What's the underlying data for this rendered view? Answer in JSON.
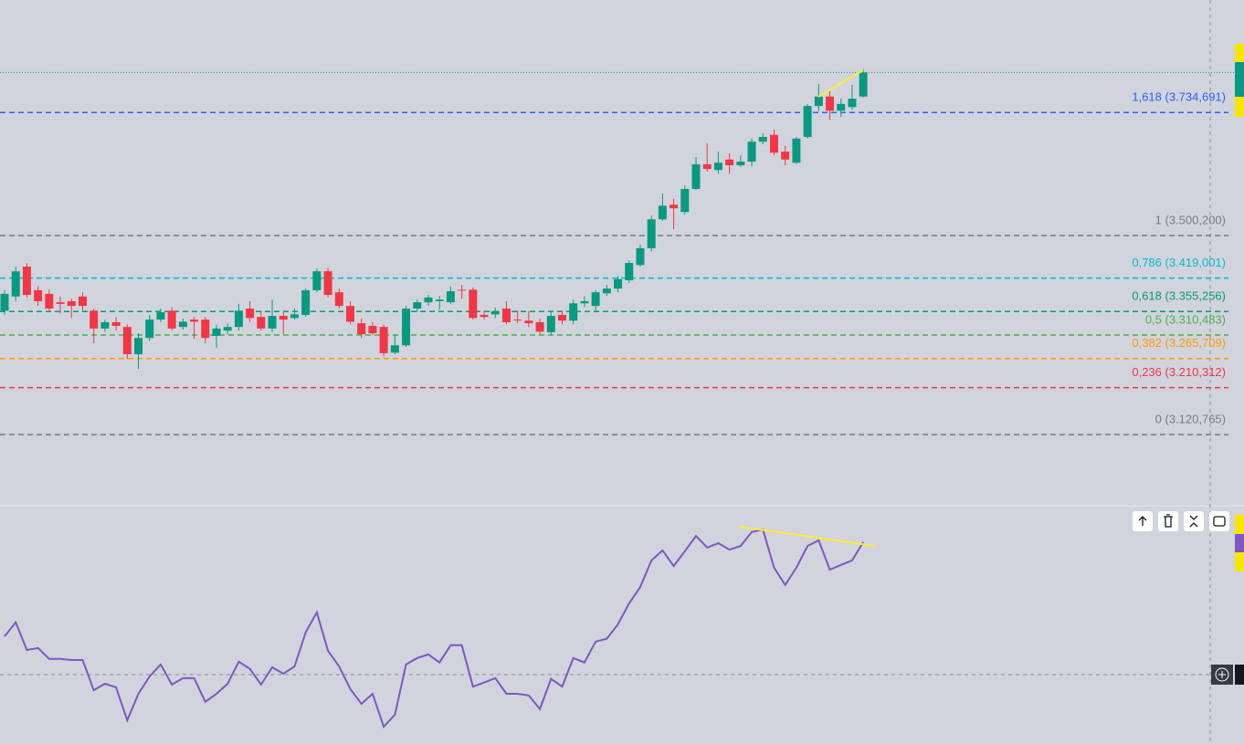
{
  "chart_data": [
    {
      "type": "candlestick",
      "ylim": [
        2987,
        3949
      ],
      "up_color": "#089981",
      "down_color": "#f23645",
      "open": [
        3357,
        3384,
        3441,
        3396,
        3389,
        3373,
        3375,
        3384,
        3357,
        3323,
        3335,
        3326,
        3274,
        3305,
        3340,
        3357,
        3326,
        3340,
        3340,
        3309,
        3319,
        3326,
        3361,
        3345,
        3323,
        3347,
        3343,
        3349,
        3396,
        3432,
        3392,
        3366,
        3333,
        3328,
        3326,
        3277,
        3291,
        3361,
        3373,
        3375,
        3373,
        3397,
        3397,
        3349,
        3350,
        3361,
        3340,
        3338,
        3335,
        3316,
        3349,
        3338,
        3371,
        3366,
        3390,
        3399,
        3415,
        3444,
        3476,
        3531,
        3559,
        3545,
        3589,
        3636,
        3625,
        3645,
        3634,
        3641,
        3679,
        3692,
        3660,
        3639,
        3688,
        3747,
        3765,
        3738,
        3745,
        3765
      ],
      "high": [
        3396,
        3441,
        3448,
        3404,
        3397,
        3384,
        3380,
        3392,
        3361,
        3340,
        3345,
        3331,
        3314,
        3349,
        3361,
        3363,
        3342,
        3345,
        3345,
        3330,
        3333,
        3370,
        3375,
        3357,
        3378,
        3354,
        3361,
        3399,
        3437,
        3439,
        3399,
        3375,
        3342,
        3336,
        3331,
        3310,
        3366,
        3378,
        3387,
        3385,
        3403,
        3406,
        3401,
        3357,
        3363,
        3375,
        3357,
        3356,
        3342,
        3354,
        3357,
        3378,
        3384,
        3396,
        3406,
        3423,
        3453,
        3483,
        3538,
        3580,
        3570,
        3596,
        3650,
        3676,
        3660,
        3657,
        3653,
        3685,
        3695,
        3702,
        3671,
        3688,
        3751,
        3789,
        3775,
        3761,
        3787,
        3817
      ],
      "low": [
        3349,
        3375,
        3382,
        3366,
        3354,
        3352,
        3343,
        3357,
        3295,
        3317,
        3319,
        3265,
        3246,
        3300,
        3335,
        3319,
        3321,
        3303,
        3295,
        3286,
        3312,
        3319,
        3336,
        3319,
        3316,
        3312,
        3340,
        3345,
        3392,
        3382,
        3361,
        3331,
        3305,
        3310,
        3270,
        3274,
        3288,
        3354,
        3366,
        3359,
        3370,
        3380,
        3340,
        3340,
        3343,
        3331,
        3333,
        3326,
        3312,
        3310,
        3331,
        3331,
        3364,
        3354,
        3385,
        3392,
        3410,
        3441,
        3470,
        3528,
        3512,
        3540,
        3587,
        3622,
        3618,
        3618,
        3631,
        3632,
        3674,
        3653,
        3634,
        3636,
        3685,
        3737,
        3721,
        3726,
        3740,
        3763
      ],
      "close": [
        3389,
        3432,
        3387,
        3375,
        3361,
        3370,
        3366,
        3366,
        3323,
        3335,
        3328,
        3274,
        3305,
        3340,
        3354,
        3323,
        3336,
        3336,
        3305,
        3323,
        3326,
        3357,
        3343,
        3323,
        3347,
        3340,
        3350,
        3396,
        3432,
        3387,
        3366,
        3336,
        3312,
        3314,
        3276,
        3291,
        3361,
        3373,
        3382,
        3378,
        3394,
        3396,
        3343,
        3345,
        3356,
        3335,
        3339,
        3333,
        3317,
        3347,
        3338,
        3371,
        3375,
        3392,
        3399,
        3417,
        3448,
        3476,
        3531,
        3557,
        3552,
        3589,
        3636,
        3627,
        3639,
        3634,
        3641,
        3679,
        3688,
        3658,
        3645,
        3685,
        3747,
        3765,
        3738,
        3751,
        3761,
        3811
      ],
      "levels": [
        {
          "value": 3734.691,
          "label": "1,618 (3.734,691)",
          "color": "#2962ff"
        },
        {
          "value": 3500.2,
          "label": "1 (3.500,200)",
          "color": "#787b86"
        },
        {
          "value": 3419.001,
          "label": "0,786 (3.419,001)",
          "color": "#00bcd4"
        },
        {
          "value": 3355.256,
          "label": "0,618 (3.355,256)",
          "color": "#089981"
        },
        {
          "value": 3310.483,
          "label": "0,5 (3.310,483)",
          "color": "#4caf50"
        },
        {
          "value": 3265.709,
          "label": "0,382 (3.265,709)",
          "color": "#ff9800"
        },
        {
          "value": 3210.312,
          "label": "0,236 (3.210,312)",
          "color": "#f23645"
        },
        {
          "value": 3120.765,
          "label": "0 (3.120,765)",
          "color": "#787b86"
        }
      ]
    },
    {
      "type": "line",
      "ylim": [
        32.7,
        91.8
      ],
      "series": [
        {
          "color": "#7e57c2",
          "values": [
            59.5,
            63.0,
            56.1,
            56.6,
            53.9,
            53.9,
            53.6,
            53.6,
            46.1,
            47.7,
            46.8,
            38.6,
            45.2,
            49.5,
            52.5,
            47.5,
            49.1,
            49.1,
            43.2,
            45.2,
            47.7,
            53.2,
            51.4,
            47.5,
            51.8,
            50.2,
            52.0,
            60.5,
            65.5,
            55.9,
            52.0,
            46.4,
            42.7,
            45.2,
            37.0,
            40.0,
            52.5,
            54.1,
            55.0,
            53.0,
            57.3,
            57.3,
            47.0,
            48.0,
            49.1,
            45.2,
            45.2,
            44.8,
            41.4,
            48.9,
            47.0,
            54.1,
            53.0,
            58.2,
            58.9,
            62.5,
            67.7,
            71.8,
            78.4,
            80.9,
            77.0,
            80.7,
            84.5,
            81.6,
            82.7,
            81.1,
            82.0,
            85.5,
            86.1,
            76.6,
            72.3,
            76.6,
            82.0,
            83.4,
            76.1,
            77.3,
            78.4,
            83.0
          ]
        }
      ]
    }
  ]
}
